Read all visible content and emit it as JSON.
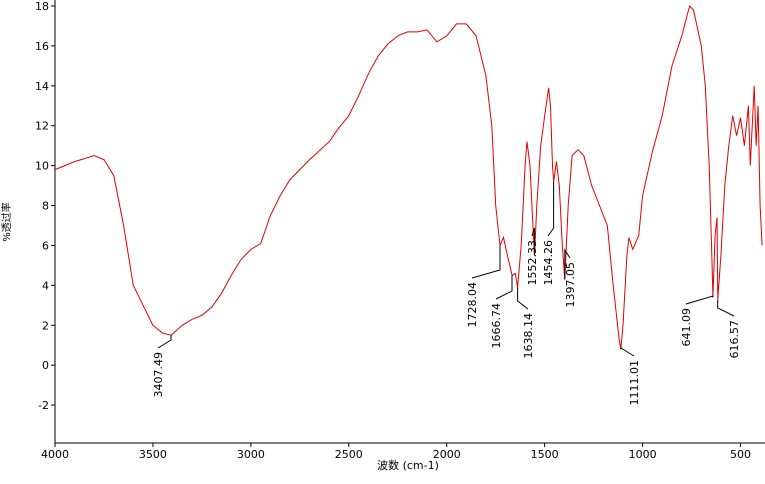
{
  "chart_data": {
    "type": "line",
    "x_label": "波数 (cm-1)",
    "y_label": "%透过率",
    "color": "#e00000",
    "xlim": [
      4000,
      375
    ],
    "ylim": [
      -3.9,
      18.3
    ],
    "xticks": [
      4000,
      3500,
      3000,
      2500,
      2000,
      1500,
      1000,
      500
    ],
    "yticks": [
      -2,
      0,
      2,
      4,
      6,
      8,
      10,
      12,
      14,
      16,
      18
    ],
    "x": [
      4000,
      3900,
      3800,
      3750,
      3700,
      3650,
      3600,
      3550,
      3500,
      3450,
      3407,
      3350,
      3300,
      3250,
      3200,
      3150,
      3100,
      3050,
      3000,
      2950,
      2900,
      2850,
      2800,
      2700,
      2600,
      2550,
      2500,
      2450,
      2400,
      2350,
      2300,
      2250,
      2200,
      2150,
      2100,
      2050,
      2000,
      1950,
      1900,
      1850,
      1800,
      1770,
      1750,
      1728,
      1710,
      1690,
      1666,
      1650,
      1638,
      1620,
      1600,
      1590,
      1575,
      1560,
      1552,
      1540,
      1520,
      1500,
      1480,
      1470,
      1460,
      1454,
      1440,
      1425,
      1410,
      1397,
      1380,
      1360,
      1330,
      1300,
      1260,
      1220,
      1180,
      1150,
      1120,
      1111,
      1100,
      1080,
      1070,
      1050,
      1020,
      1000,
      950,
      900,
      850,
      800,
      760,
      740,
      700,
      680,
      660,
      645,
      641,
      630,
      620,
      616,
      600,
      580,
      560,
      540,
      520,
      500,
      480,
      460,
      450,
      430,
      420,
      410,
      400,
      390
    ],
    "values": [
      9.8,
      10.2,
      10.5,
      10.3,
      9.5,
      7,
      4,
      3,
      2,
      1.6,
      1.5,
      2,
      2.3,
      2.5,
      2.9,
      3.6,
      4.5,
      5.3,
      5.8,
      6.1,
      7.5,
      8.5,
      9.3,
      10.3,
      11.2,
      11.9,
      12.5,
      13.5,
      14.6,
      15.5,
      16.1,
      16.5,
      16.7,
      16.7,
      16.8,
      16.2,
      16.5,
      17.1,
      17.1,
      16.5,
      14.5,
      12,
      8,
      6.0,
      6.4,
      5.5,
      4.5,
      4.6,
      3.9,
      6,
      10,
      11.2,
      10,
      7,
      5.5,
      8,
      11,
      12.5,
      13.9,
      13,
      10,
      9.2,
      10.2,
      9,
      6,
      4.3,
      8,
      10.5,
      10.8,
      10.5,
      9,
      8,
      7,
      4,
      1.3,
      0.8,
      2,
      5.5,
      6.4,
      5.8,
      6.5,
      8.5,
      10.7,
      12.5,
      15,
      16.5,
      18,
      17.8,
      16,
      14,
      10,
      5,
      3.4,
      6.5,
      7.4,
      3.3,
      5.5,
      9,
      11,
      12.5,
      11.5,
      12.4,
      11,
      13,
      10,
      14,
      11,
      13,
      8,
      6
    ],
    "peaks": [
      {
        "x": 3407.49,
        "y": 1.5
      },
      {
        "x": 1728.04,
        "y": 6.0
      },
      {
        "x": 1666.74,
        "y": 4.5
      },
      {
        "x": 1638.14,
        "y": 3.9
      },
      {
        "x": 1552.33,
        "y": 5.5
      },
      {
        "x": 1454.26,
        "y": 9.2
      },
      {
        "x": 1397.05,
        "y": 4.3
      },
      {
        "x": 1111.01,
        "y": 0.8
      },
      {
        "x": 641.09,
        "y": 3.4
      },
      {
        "x": 616.57,
        "y": 3.3
      }
    ]
  }
}
